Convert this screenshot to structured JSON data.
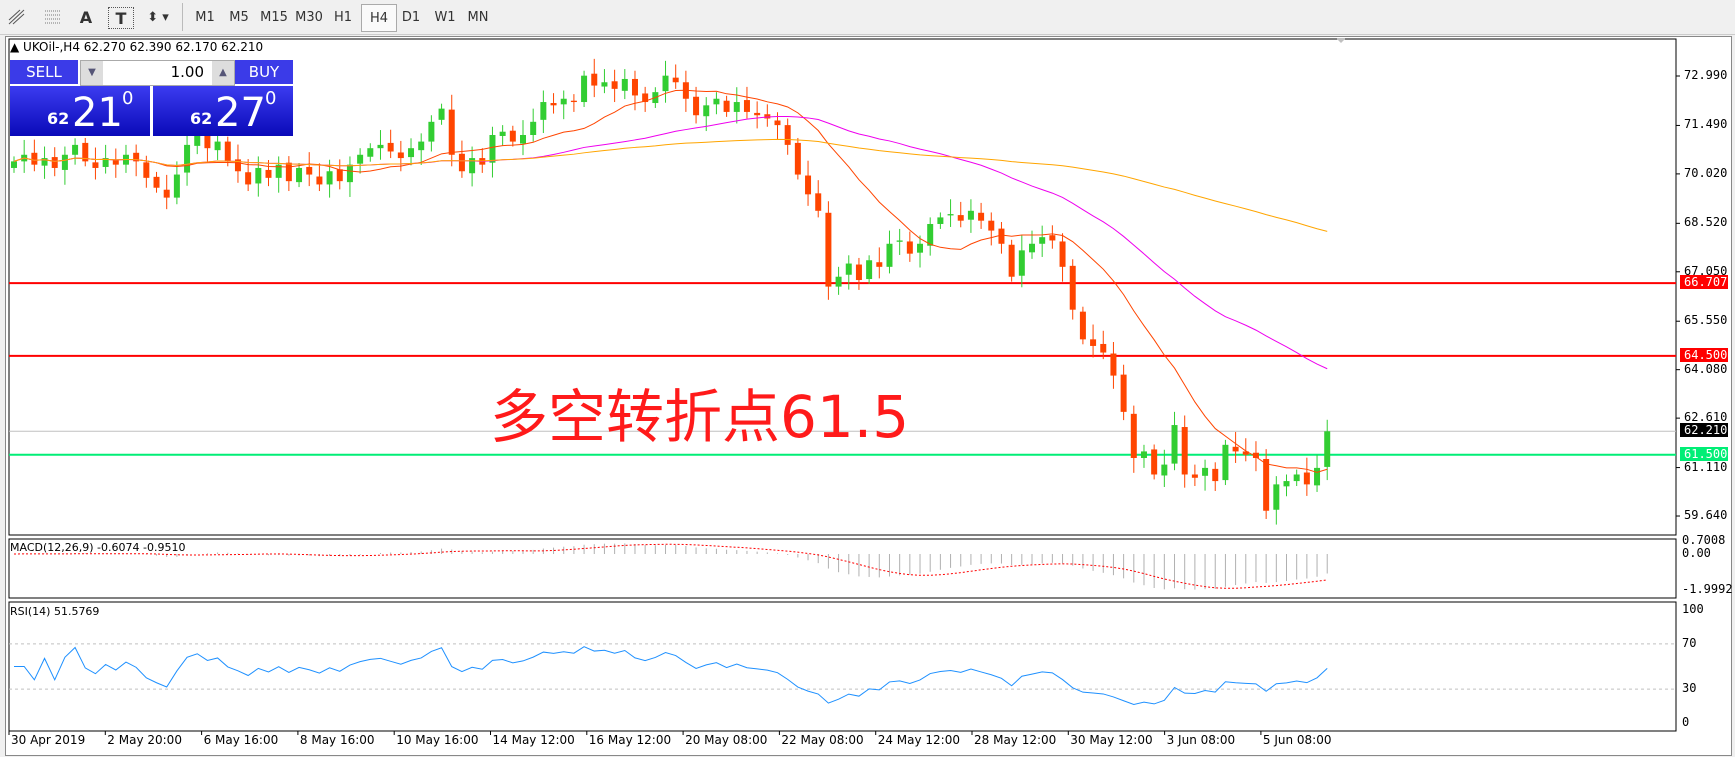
{
  "toolbar": {
    "tools": [
      {
        "icon": "fibonacci-fan-icon"
      },
      {
        "icon": "fibonacci-grid-icon"
      },
      {
        "icon": "text-icon",
        "label": "A"
      },
      {
        "icon": "text-label-icon",
        "label": "T"
      },
      {
        "icon": "arrows-dropdown-icon"
      }
    ],
    "timeframes": [
      "M1",
      "M5",
      "M15",
      "M30",
      "H1",
      "H4",
      "D1",
      "W1",
      "MN"
    ],
    "active": "H4"
  },
  "chart": {
    "header": "UKOil-,H4  62.270 62.390 62.170 62.210",
    "trade": {
      "sell": "SELL",
      "buy": "BUY",
      "lot": "1.00",
      "sell_small": "62",
      "sell_big": "21",
      "sell_sup": "0",
      "buy_small": "62",
      "buy_big": "27",
      "buy_sup": "0"
    },
    "annotation": "多空转折点61.5",
    "price_ticks": [
      "72.990",
      "71.490",
      "70.020",
      "68.520",
      "67.050",
      "65.550",
      "64.080",
      "62.610",
      "61.110",
      "59.640"
    ],
    "levels": [
      {
        "price": 66.707,
        "label": "66.707",
        "color": "#ff0000"
      },
      {
        "price": 64.5,
        "label": "64.500",
        "color": "#ff0000"
      },
      {
        "price": 61.5,
        "label": "61.500",
        "color": "#00ee76"
      }
    ],
    "bid": {
      "price": 62.21,
      "label": "62.210"
    },
    "macd": {
      "label": "MACD(12,26,9) -0.6074 -0.9510",
      "ticks": [
        "0.7008",
        "0.00",
        "-1.9992"
      ]
    },
    "rsi": {
      "label": "RSI(14) 51.5769",
      "ticks": [
        "100",
        "70",
        "30",
        "0"
      ]
    },
    "dates": [
      "30 Apr 2019",
      "2 May 20:00",
      "6 May 16:00",
      "8 May 16:00",
      "10 May 16:00",
      "14 May 12:00",
      "16 May 12:00",
      "20 May 08:00",
      "22 May 08:00",
      "24 May 12:00",
      "28 May 12:00",
      "30 May 12:00",
      "3 Jun 08:00",
      "5 Jun 08:00"
    ]
  },
  "colors": {
    "bull": "#32cd32",
    "bear": "#ff4500",
    "ma_fast": "#ff4500",
    "ma_mid": "#ee00ee",
    "ma_slow": "#ffa500",
    "rsi": "#1e90ff"
  },
  "chart_data": {
    "type": "candlestick",
    "symbol": "UKOil-",
    "timeframe": "H4",
    "ylim": [
      59.0,
      73.6
    ],
    "close": [
      70.4,
      70.6,
      70.3,
      70.5,
      70.2,
      70.6,
      70.9,
      70.4,
      70.2,
      70.5,
      70.3,
      70.6,
      70.4,
      69.9,
      69.6,
      69.3,
      70.0,
      70.9,
      71.2,
      70.8,
      71.0,
      70.4,
      70.1,
      69.7,
      70.2,
      69.9,
      70.3,
      69.8,
      70.2,
      70.0,
      69.7,
      70.1,
      69.8,
      70.3,
      70.6,
      70.8,
      70.9,
      70.7,
      70.5,
      70.8,
      71.0,
      71.6,
      72.0,
      70.6,
      70.1,
      70.5,
      70.3,
      71.2,
      71.3,
      71.0,
      71.2,
      71.6,
      72.2,
      72.1,
      72.3,
      72.2,
      73.0,
      72.7,
      72.8,
      72.6,
      72.9,
      72.4,
      72.2,
      72.5,
      73.0,
      72.8,
      72.3,
      71.8,
      72.1,
      72.3,
      71.9,
      72.2,
      71.9,
      71.8,
      71.7,
      71.5,
      70.9,
      70.0,
      69.4,
      68.9,
      66.6,
      66.9,
      67.3,
      66.8,
      67.4,
      67.2,
      67.9,
      68.0,
      67.6,
      67.9,
      68.5,
      68.7,
      68.8,
      68.6,
      68.9,
      68.6,
      68.3,
      67.9,
      66.9,
      67.7,
      67.9,
      68.1,
      68.0,
      67.2,
      65.9,
      65.0,
      64.8,
      64.6,
      63.9,
      62.8,
      61.4,
      61.6,
      60.9,
      61.2,
      62.4,
      60.9,
      60.8,
      61.1,
      60.7,
      61.8,
      61.6,
      61.5,
      61.4,
      59.8,
      60.6,
      60.7,
      60.9,
      60.6,
      61.1,
      62.21
    ]
  }
}
